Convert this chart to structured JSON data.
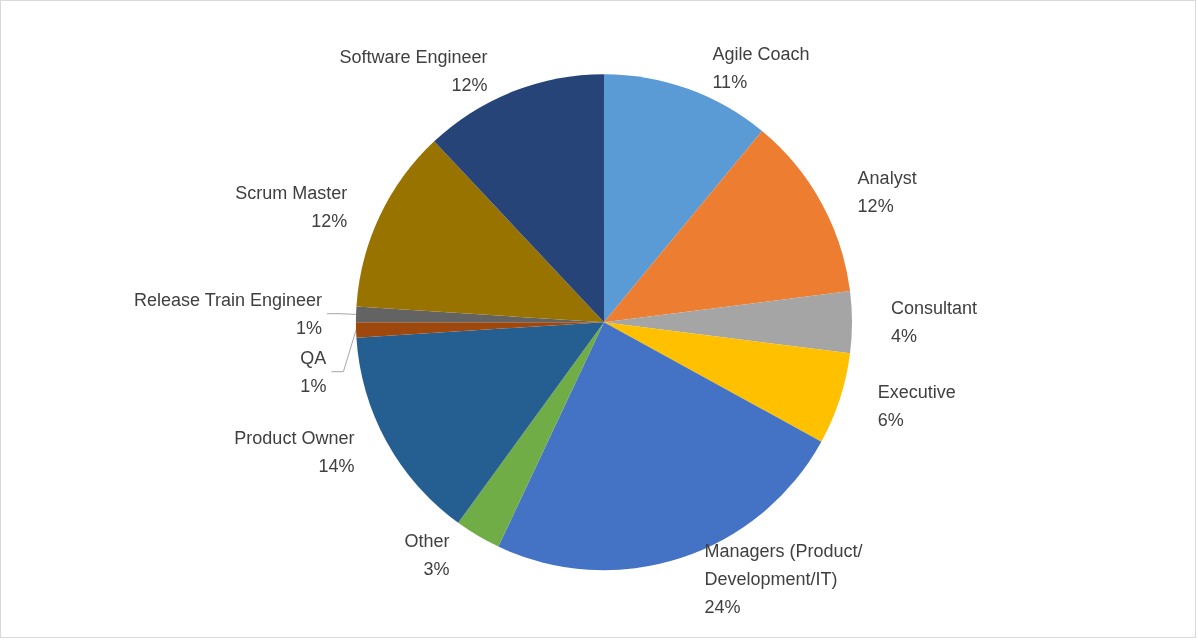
{
  "chart_data": {
    "type": "pie",
    "categories": [
      "Agile Coach",
      "Analyst",
      "Consultant",
      "Executive",
      "Managers (Product/Development/IT)",
      "Other",
      "Product Owner",
      "QA",
      "Release Train Engineer",
      "Scrum Master",
      "Software Engineer"
    ],
    "values": [
      11,
      12,
      4,
      6,
      24,
      3,
      14,
      1,
      1,
      12,
      12
    ],
    "value_labels": [
      "11%",
      "12%",
      "4%",
      "6%",
      "24%",
      "3%",
      "14%",
      "1%",
      "1%",
      "12%",
      "12%"
    ],
    "colors": [
      "#5b9bd5",
      "#ed7d31",
      "#a5a5a5",
      "#ffc000",
      "#4472c4",
      "#70ad47",
      "#255e91",
      "#9e480e",
      "#636363",
      "#997300",
      "#264478"
    ],
    "legend": false
  }
}
